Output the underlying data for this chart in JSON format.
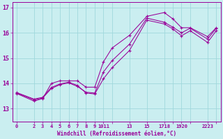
{
  "xlabel": "Windchill (Refroidissement éolien,°C)",
  "background_color": "#caeef0",
  "grid_color": "#a0d8dc",
  "line_color": "#990099",
  "xlim": [
    -0.5,
    23.5
  ],
  "ylim": [
    12.5,
    17.2
  ],
  "yticks": [
    13,
    14,
    15,
    16,
    17
  ],
  "xticks": [
    0,
    2,
    3,
    4,
    5,
    6,
    7,
    8,
    9,
    10,
    11,
    13,
    15,
    17,
    18,
    19,
    20,
    22,
    23
  ],
  "xtick_labels": [
    "0",
    "2",
    "3",
    "4",
    "5",
    "6",
    "7",
    "8",
    "9",
    "1011",
    "",
    "13",
    "15",
    "1718",
    "",
    "1920",
    "",
    "2223",
    ""
  ],
  "series": [
    {
      "x": [
        0,
        2,
        3,
        4,
        5,
        6,
        7,
        8,
        9,
        10,
        11,
        13,
        15,
        17,
        18,
        19,
        20,
        22,
        23
      ],
      "y": [
        13.6,
        13.3,
        13.4,
        14.0,
        14.1,
        14.1,
        14.1,
        13.85,
        13.85,
        14.85,
        15.4,
        15.9,
        16.65,
        16.8,
        16.55,
        16.2,
        16.2,
        15.85,
        16.2
      ]
    },
    {
      "x": [
        0,
        2,
        3,
        4,
        5,
        6,
        7,
        8,
        9,
        10,
        11,
        13,
        15,
        17,
        18,
        19,
        20,
        22,
        23
      ],
      "y": [
        13.62,
        13.35,
        13.42,
        13.8,
        13.95,
        14.02,
        13.88,
        13.65,
        13.62,
        14.45,
        14.9,
        15.55,
        16.58,
        16.42,
        16.22,
        16.0,
        16.18,
        15.75,
        16.18
      ]
    },
    {
      "x": [
        0,
        2,
        3,
        4,
        5,
        6,
        7,
        8,
        9,
        10,
        11,
        13,
        15,
        17,
        18,
        19,
        20,
        22,
        23
      ],
      "y": [
        13.64,
        13.38,
        13.45,
        13.84,
        13.98,
        14.05,
        13.92,
        13.62,
        13.58,
        14.18,
        14.62,
        15.3,
        16.5,
        16.35,
        16.15,
        15.88,
        16.08,
        15.62,
        16.08
      ]
    }
  ]
}
